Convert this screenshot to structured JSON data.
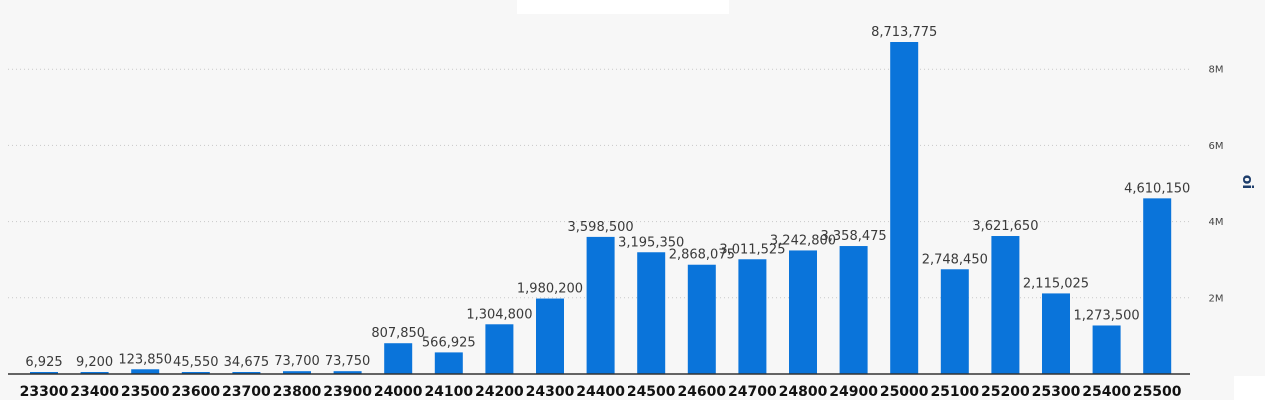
{
  "chart_data": {
    "type": "bar",
    "title": "",
    "xlabel": "",
    "ylabel": "oi",
    "ylim": [
      0,
      9400000
    ],
    "grid": true,
    "y_axis_side": "right",
    "bar_color": "#0a74da",
    "y_ticks": [
      {
        "value": 2000000,
        "label": "2M"
      },
      {
        "value": 4000000,
        "label": "4M"
      },
      {
        "value": 6000000,
        "label": "6M"
      },
      {
        "value": 8000000,
        "label": "8M"
      }
    ],
    "categories": [
      "23300",
      "23400",
      "23500",
      "23600",
      "23700",
      "23800",
      "23900",
      "24000",
      "24100",
      "24200",
      "24300",
      "24400",
      "24500",
      "24600",
      "24700",
      "24800",
      "24900",
      "25000",
      "25100",
      "25200",
      "25300",
      "25400",
      "25500"
    ],
    "values": [
      6925,
      9200,
      123850,
      45550,
      34675,
      73700,
      73750,
      807850,
      566925,
      1304800,
      1980200,
      3598500,
      3195350,
      2868075,
      3011525,
      3242800,
      3358475,
      8713775,
      2748450,
      3621650,
      2115025,
      1273500,
      4610150
    ],
    "data_labels": [
      "6,925",
      "9,200",
      "123,850",
      "45,550",
      "34,675",
      "73,700",
      "73,750",
      "807,850",
      "566,925",
      "1,304,800",
      "1,980,200",
      "3,598,500",
      "3,195,350",
      "2,868,075",
      "3,011,525",
      "3,242,800",
      "3,358,475",
      "8,713,775",
      "2,748,450",
      "3,621,650",
      "2,115,025",
      "1,273,500",
      "4,610,150"
    ]
  }
}
